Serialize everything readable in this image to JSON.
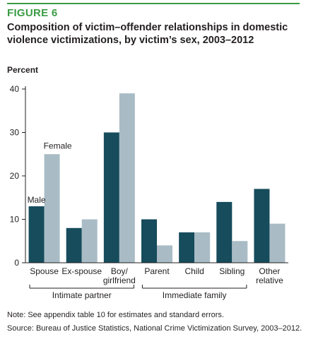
{
  "figure": {
    "label": "FIGURE 6",
    "title": "Composition of victim–offender relationships in domestic violence victimizations, by victim’s sex, 2003–2012",
    "note": "Note: See appendix table 10 for estimates and standard errors.",
    "source": "Source: Bureau of Justice Statistics, National Crime Victimization Survey, 2003–2012."
  },
  "colors": {
    "accent": "#3a9c45",
    "male": "#164c5c",
    "female": "#a9bcc6"
  },
  "chart_data": {
    "type": "bar",
    "ylabel": "Percent",
    "ylim": [
      0,
      40
    ],
    "yticks": [
      "0",
      "10",
      "20",
      "30",
      "40"
    ],
    "categories": [
      [
        "Spouse"
      ],
      [
        "Ex-spouse"
      ],
      [
        "Boy/",
        "girlfriend"
      ],
      [
        "Parent"
      ],
      [
        "Child"
      ],
      [
        "Sibling"
      ],
      [
        "Other",
        "relative"
      ]
    ],
    "series": [
      {
        "name": "Male",
        "values": [
          13,
          8,
          30,
          10,
          7,
          14,
          17
        ]
      },
      {
        "name": "Female",
        "values": [
          25,
          10,
          39,
          4,
          7,
          5,
          9
        ]
      }
    ],
    "groups": [
      {
        "label": "Intimate partner",
        "start": 0,
        "end": 2
      },
      {
        "label": "Immediate family",
        "start": 3,
        "end": 5
      }
    ],
    "grid": false,
    "legend": "direct labels on first category"
  }
}
